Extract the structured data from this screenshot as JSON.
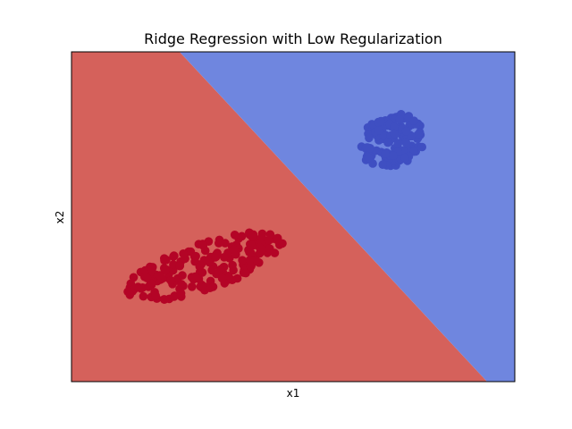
{
  "chart_data": {
    "type": "scatter",
    "title": "Ridge Regression with Low Regularization",
    "xlabel": "x1",
    "ylabel": "x2",
    "xlim": [
      -4,
      4
    ],
    "ylim": [
      -4,
      4
    ],
    "grid": false,
    "ticks_visible": false,
    "decision_regions": {
      "boundary": {
        "x1": [
          -2.05,
          3.5
        ],
        "x2": [
          4,
          -4
        ]
      },
      "upper_right_color": "#6f86df",
      "lower_left_color": "#d5615b"
    },
    "series": [
      {
        "color": "#3f4fc2",
        "center": [
          1.8,
          1.85
        ],
        "spread": [
          0.55,
          0.7
        ],
        "tilt": -0.55,
        "count": 150
      },
      {
        "color": "#b40426",
        "center": [
          -1.6,
          -1.2
        ],
        "spread": [
          1.55,
          0.55
        ],
        "tilt": 0.45,
        "count": 190
      }
    ]
  }
}
